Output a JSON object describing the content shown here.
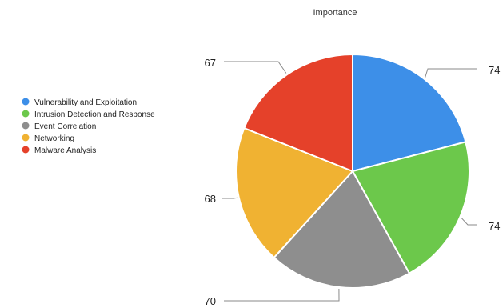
{
  "chart_data": {
    "type": "pie",
    "title": "Importance",
    "legend_position": "left",
    "series": [
      {
        "name": "Vulnerability and Exploitation",
        "value": 74,
        "color": "#3d8fe8"
      },
      {
        "name": "Intrusion Detection and Response",
        "value": 74,
        "color": "#6cc84b"
      },
      {
        "name": "Event Correlation",
        "value": 70,
        "color": "#8e8e8e"
      },
      {
        "name": "Networking",
        "value": 68,
        "color": "#f0b232"
      },
      {
        "name": "Malware Analysis",
        "value": 67,
        "color": "#e5412a"
      }
    ],
    "data_labels": [
      "74",
      "74",
      "70",
      "68",
      "67"
    ]
  }
}
